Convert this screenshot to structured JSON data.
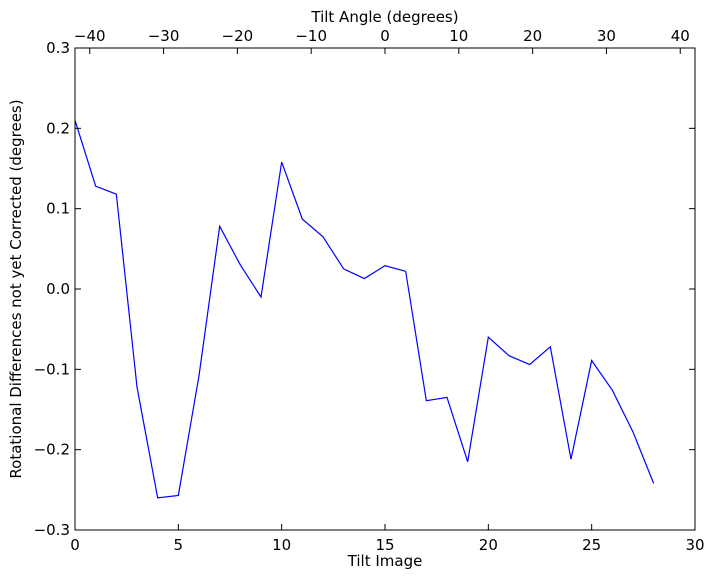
{
  "chart_data": {
    "type": "line",
    "xlabel": "Tilt Image",
    "ylabel": "Rotational Differences not yet Corrected (degrees)",
    "top_xlabel": "Tilt Angle (degrees)",
    "xlim": [
      0,
      30
    ],
    "ylim": [
      -0.3,
      0.3
    ],
    "top_xlim": [
      -42,
      42
    ],
    "x_ticks": [
      0,
      5,
      10,
      15,
      20,
      25,
      30
    ],
    "x_tick_labels": [
      "0",
      "5",
      "10",
      "15",
      "20",
      "25",
      "30"
    ],
    "y_ticks": [
      -0.3,
      -0.2,
      -0.1,
      0.0,
      0.1,
      0.2,
      0.3
    ],
    "y_tick_labels": [
      "−0.3",
      "−0.2",
      "−0.1",
      "0.0",
      "0.1",
      "0.2",
      "0.3"
    ],
    "top_x_ticks": [
      -40,
      -30,
      -20,
      -10,
      0,
      10,
      20,
      30,
      40
    ],
    "top_x_tick_labels": [
      "−40",
      "−30",
      "−20",
      "−10",
      "0",
      "10",
      "20",
      "30",
      "40"
    ],
    "grid": false,
    "line_color": "#0000ff",
    "series": [
      {
        "x": [
          0,
          1,
          2,
          3,
          4,
          5,
          6,
          7,
          8,
          9,
          10,
          11,
          12,
          13,
          14,
          15,
          16,
          17,
          18,
          19,
          20,
          21,
          22,
          23,
          24,
          25,
          26,
          27,
          28
        ],
        "values": [
          0.21,
          0.128,
          0.118,
          -0.122,
          -0.26,
          -0.257,
          -0.108,
          0.078,
          0.03,
          -0.01,
          0.158,
          0.087,
          0.065,
          0.025,
          0.013,
          0.029,
          0.022,
          -0.139,
          -0.135,
          -0.215,
          -0.06,
          -0.083,
          -0.094,
          -0.072,
          -0.212,
          -0.089,
          -0.126,
          -0.178,
          -0.242
        ]
      }
    ]
  }
}
